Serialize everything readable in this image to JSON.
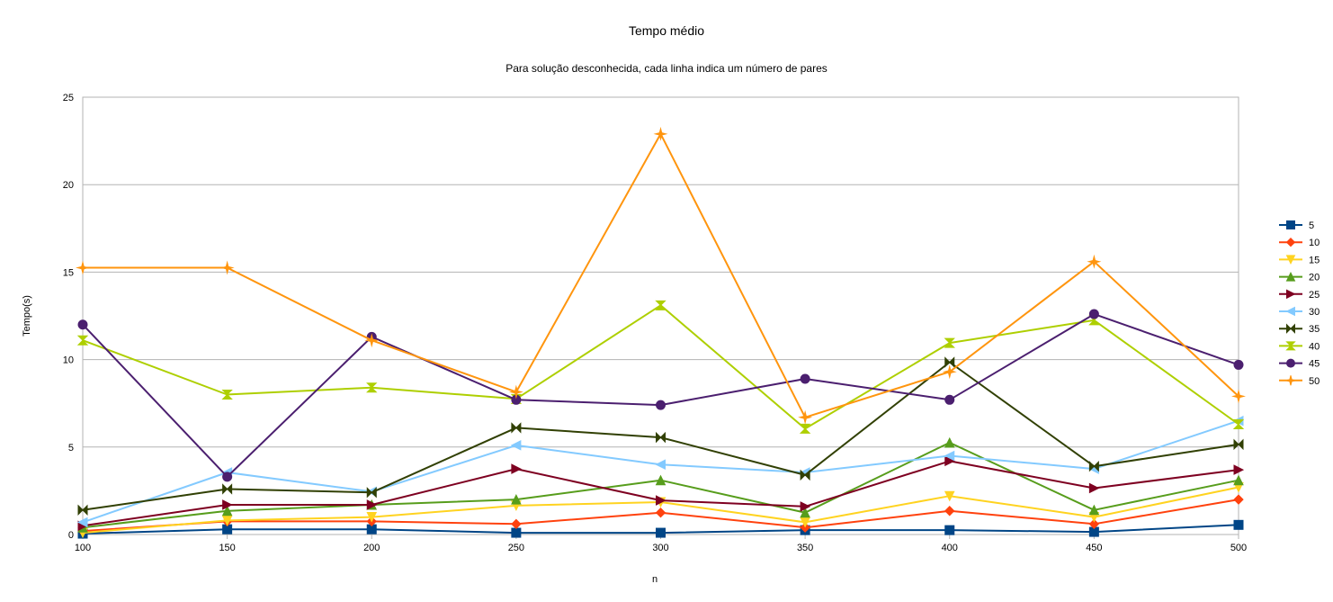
{
  "chart_data": {
    "type": "line",
    "title": "Tempo médio",
    "subtitle": "Para solução desconhecida, cada linha indica um número de pares",
    "xlabel": "n",
    "ylabel": "Tempo(s)",
    "x": [
      100,
      150,
      200,
      250,
      300,
      350,
      400,
      450,
      500
    ],
    "ylim": [
      0,
      25
    ],
    "yticks": [
      0,
      5,
      10,
      15,
      20,
      25
    ],
    "grid": true,
    "legend": "right",
    "series": [
      {
        "name": "5",
        "color": "#004586",
        "marker": "square",
        "values": [
          0.05,
          0.3,
          0.3,
          0.1,
          0.1,
          0.25,
          0.25,
          0.15,
          0.55
        ]
      },
      {
        "name": "10",
        "color": "#ff420e",
        "marker": "diamond",
        "values": [
          0.2,
          0.75,
          0.75,
          0.6,
          1.25,
          0.4,
          1.35,
          0.6,
          2.0
        ]
      },
      {
        "name": "15",
        "color": "#ffd320",
        "marker": "triangle-down",
        "values": [
          0.1,
          0.8,
          1.0,
          1.65,
          1.85,
          0.7,
          2.2,
          1.0,
          2.7
        ]
      },
      {
        "name": "20",
        "color": "#579d1c",
        "marker": "triangle-up",
        "values": [
          0.4,
          1.35,
          1.7,
          2.0,
          3.1,
          1.25,
          5.25,
          1.4,
          3.1
        ]
      },
      {
        "name": "25",
        "color": "#7e0021",
        "marker": "triangle-right",
        "values": [
          0.5,
          1.7,
          1.7,
          3.75,
          1.95,
          1.6,
          4.2,
          2.65,
          3.7
        ]
      },
      {
        "name": "30",
        "color": "#83caff",
        "marker": "triangle-left",
        "values": [
          0.7,
          3.55,
          2.45,
          5.1,
          4.0,
          3.55,
          4.5,
          3.75,
          6.5
        ]
      },
      {
        "name": "35",
        "color": "#314004",
        "marker": "bowtie",
        "values": [
          1.4,
          2.6,
          2.4,
          6.1,
          5.55,
          3.4,
          9.85,
          3.9,
          5.15
        ]
      },
      {
        "name": "40",
        "color": "#aecf00",
        "marker": "hourglass",
        "values": [
          11.1,
          8.0,
          8.4,
          7.75,
          13.1,
          6.05,
          10.95,
          12.25,
          6.3
        ]
      },
      {
        "name": "45",
        "color": "#4b1f6f",
        "marker": "circle",
        "values": [
          12.0,
          3.3,
          11.3,
          7.7,
          7.4,
          8.9,
          7.7,
          12.6,
          9.7
        ]
      },
      {
        "name": "50",
        "color": "#ff950e",
        "marker": "star",
        "values": [
          15.25,
          15.25,
          11.1,
          8.15,
          22.9,
          6.7,
          9.3,
          15.6,
          7.9
        ]
      }
    ]
  }
}
